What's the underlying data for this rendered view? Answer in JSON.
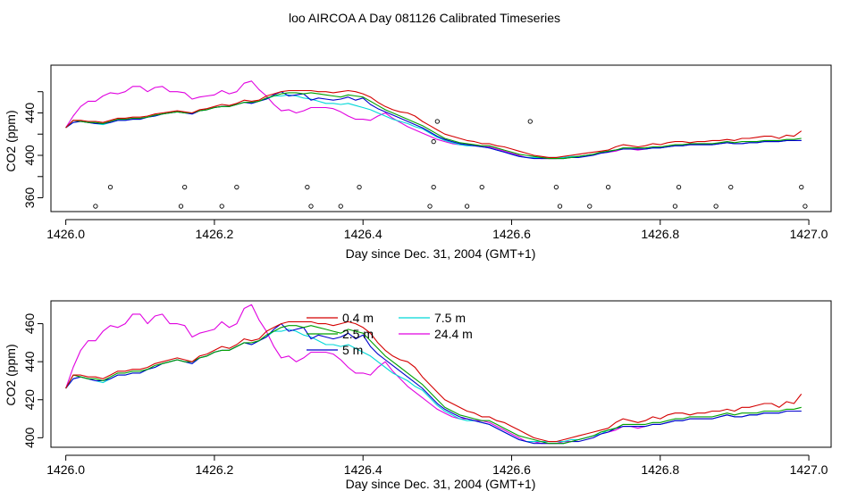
{
  "page": {
    "title": "loo AIRCOA A  Day 081126  Calibrated Timeseries"
  },
  "chart_data": [
    {
      "type": "line",
      "xlabel": "Day since Dec. 31, 2004 (GMT+1)",
      "ylabel": "CO2 (ppm)",
      "xlim": [
        1425.98,
        1427.03
      ],
      "ylim": [
        347,
        485
      ],
      "x_ticks": [
        "1426.0",
        "1426.2",
        "1426.4",
        "1426.6",
        "1426.8",
        "1427.0"
      ],
      "y_ticks": [
        "360",
        "400",
        "440"
      ],
      "y_minor_ticks": [
        360,
        380,
        400,
        420,
        440,
        460
      ],
      "grid": false,
      "series_colors": [
        "#d40000",
        "#00a000",
        "#0000cc",
        "#00d8d8",
        "#e000e0"
      ],
      "scatter_points": [
        {
          "x": 1426.04,
          "y": 352
        },
        {
          "x": 1426.06,
          "y": 370
        },
        {
          "x": 1426.155,
          "y": 352
        },
        {
          "x": 1426.16,
          "y": 370
        },
        {
          "x": 1426.21,
          "y": 352
        },
        {
          "x": 1426.23,
          "y": 370
        },
        {
          "x": 1426.325,
          "y": 370
        },
        {
          "x": 1426.33,
          "y": 352
        },
        {
          "x": 1426.37,
          "y": 352
        },
        {
          "x": 1426.395,
          "y": 370
        },
        {
          "x": 1426.49,
          "y": 352
        },
        {
          "x": 1426.495,
          "y": 370
        },
        {
          "x": 1426.495,
          "y": 413
        },
        {
          "x": 1426.5,
          "y": 432
        },
        {
          "x": 1426.54,
          "y": 352
        },
        {
          "x": 1426.56,
          "y": 370
        },
        {
          "x": 1426.625,
          "y": 432
        },
        {
          "x": 1426.66,
          "y": 370
        },
        {
          "x": 1426.665,
          "y": 352
        },
        {
          "x": 1426.705,
          "y": 352
        },
        {
          "x": 1426.73,
          "y": 370
        },
        {
          "x": 1426.82,
          "y": 352
        },
        {
          "x": 1426.825,
          "y": 370
        },
        {
          "x": 1426.875,
          "y": 352
        },
        {
          "x": 1426.895,
          "y": 370
        },
        {
          "x": 1426.99,
          "y": 370
        },
        {
          "x": 1426.995,
          "y": 352
        }
      ]
    },
    {
      "type": "line",
      "xlabel": "Day since Dec. 31, 2004 (GMT+1)",
      "ylabel": "CO2 (ppm)",
      "xlim": [
        1425.98,
        1427.03
      ],
      "ylim": [
        395,
        472
      ],
      "x_ticks": [
        "1426.0",
        "1426.2",
        "1426.4",
        "1426.6",
        "1426.8",
        "1427.0"
      ],
      "y_ticks": [
        "400",
        "420",
        "440",
        "460"
      ],
      "grid": false,
      "legend_position": "top-center",
      "series": [
        {
          "name": "0.4 m",
          "color": "#d40000"
        },
        {
          "name": "2.5 m",
          "color": "#00a000"
        },
        {
          "name": "5 m",
          "color": "#0000cc"
        },
        {
          "name": "7.5 m",
          "color": "#00d8d8"
        },
        {
          "name": "24.4 m",
          "color": "#e000e0"
        }
      ],
      "series_data": {
        "x": [
          1426.0,
          1426.01,
          1426.02,
          1426.03,
          1426.04,
          1426.05,
          1426.06,
          1426.07,
          1426.08,
          1426.09,
          1426.1,
          1426.11,
          1426.12,
          1426.13,
          1426.14,
          1426.15,
          1426.16,
          1426.17,
          1426.18,
          1426.19,
          1426.2,
          1426.21,
          1426.22,
          1426.23,
          1426.24,
          1426.25,
          1426.26,
          1426.27,
          1426.28,
          1426.29,
          1426.3,
          1426.31,
          1426.32,
          1426.33,
          1426.34,
          1426.35,
          1426.36,
          1426.37,
          1426.38,
          1426.39,
          1426.4,
          1426.41,
          1426.42,
          1426.43,
          1426.44,
          1426.45,
          1426.46,
          1426.47,
          1426.48,
          1426.49,
          1426.5,
          1426.51,
          1426.52,
          1426.53,
          1426.54,
          1426.55,
          1426.56,
          1426.57,
          1426.58,
          1426.59,
          1426.6,
          1426.61,
          1426.62,
          1426.63,
          1426.64,
          1426.65,
          1426.66,
          1426.67,
          1426.68,
          1426.69,
          1426.7,
          1426.71,
          1426.72,
          1426.73,
          1426.74,
          1426.75,
          1426.76,
          1426.77,
          1426.78,
          1426.79,
          1426.8,
          1426.81,
          1426.82,
          1426.83,
          1426.84,
          1426.85,
          1426.86,
          1426.87,
          1426.88,
          1426.89,
          1426.9,
          1426.91,
          1426.92,
          1426.93,
          1426.94,
          1426.95,
          1426.96,
          1426.97,
          1426.98,
          1426.99
        ],
        "values": [
          [
            426,
            433,
            433,
            432,
            432,
            431,
            433,
            435,
            435,
            436,
            436,
            437,
            439,
            440,
            441,
            442,
            441,
            440,
            443,
            444,
            446,
            448,
            447,
            449,
            452,
            451,
            452,
            456,
            458,
            460,
            461,
            461,
            461,
            461,
            460,
            460,
            459,
            460,
            461,
            460,
            458,
            455,
            450,
            446,
            443,
            441,
            440,
            437,
            432,
            428,
            424,
            420,
            418,
            416,
            414,
            413,
            411,
            411,
            409,
            408,
            406,
            404,
            402,
            400,
            399,
            398,
            398,
            399,
            400,
            401,
            402,
            403,
            404,
            405,
            408,
            410,
            409,
            408,
            409,
            411,
            410,
            412,
            413,
            413,
            412,
            413,
            413,
            414,
            414,
            415,
            414,
            416,
            416,
            417,
            418,
            418,
            416,
            419,
            418,
            423
          ],
          [
            426,
            433,
            432,
            431,
            431,
            430,
            432,
            434,
            434,
            435,
            435,
            436,
            438,
            439,
            440,
            441,
            440,
            440,
            442,
            443,
            445,
            446,
            446,
            448,
            450,
            450,
            451,
            454,
            456,
            458,
            459,
            459,
            458,
            459,
            458,
            457,
            456,
            455,
            457,
            456,
            455,
            451,
            447,
            443,
            440,
            437,
            434,
            431,
            428,
            424,
            420,
            416,
            414,
            412,
            411,
            410,
            409,
            409,
            407,
            405,
            403,
            401,
            400,
            399,
            398,
            397,
            397,
            397,
            398,
            399,
            400,
            401,
            403,
            404,
            405,
            407,
            407,
            407,
            407,
            408,
            408,
            409,
            410,
            410,
            411,
            411,
            411,
            411,
            412,
            413,
            412,
            413,
            413,
            413,
            414,
            414,
            414,
            415,
            415,
            416
          ],
          [
            426,
            431,
            432,
            431,
            430,
            430,
            431,
            433,
            433,
            434,
            434,
            436,
            437,
            439,
            440,
            441,
            440,
            439,
            442,
            443,
            445,
            446,
            446,
            448,
            450,
            449,
            451,
            453,
            457,
            460,
            456,
            457,
            458,
            452,
            454,
            453,
            452,
            453,
            455,
            452,
            454,
            448,
            444,
            441,
            438,
            435,
            432,
            429,
            426,
            422,
            418,
            415,
            413,
            411,
            410,
            409,
            408,
            407,
            405,
            403,
            401,
            399,
            398,
            397,
            397,
            397,
            397,
            397,
            398,
            398,
            399,
            400,
            402,
            403,
            405,
            406,
            406,
            406,
            406,
            407,
            407,
            408,
            409,
            409,
            410,
            410,
            410,
            410,
            411,
            412,
            411,
            411,
            412,
            412,
            413,
            413,
            413,
            414,
            414,
            414
          ],
          [
            426,
            431,
            432,
            431,
            430,
            429,
            431,
            433,
            433,
            434,
            434,
            436,
            437,
            439,
            440,
            441,
            440,
            439,
            442,
            443,
            445,
            446,
            446,
            448,
            450,
            449,
            451,
            453,
            456,
            456,
            457,
            456,
            454,
            453,
            451,
            449,
            449,
            448,
            449,
            447,
            445,
            443,
            440,
            437,
            434,
            432,
            430,
            427,
            425,
            421,
            417,
            414,
            412,
            410,
            409,
            409,
            408,
            407,
            405,
            403,
            401,
            399,
            398,
            398,
            398,
            398,
            398,
            398,
            399,
            399,
            400,
            401,
            402,
            404,
            405,
            406,
            406,
            406,
            406,
            407,
            407,
            408,
            409,
            409,
            410,
            410,
            410,
            410,
            411,
            412,
            411,
            411,
            412,
            412,
            413,
            413,
            413,
            414,
            414,
            414
          ],
          [
            426,
            437,
            446,
            451,
            451,
            456,
            459,
            458,
            460,
            465,
            465,
            460,
            464,
            465,
            460,
            460,
            459,
            453,
            455,
            456,
            457,
            461,
            458,
            460,
            468,
            470,
            462,
            456,
            448,
            442,
            443,
            440,
            442,
            445,
            445,
            445,
            444,
            441,
            437,
            434,
            434,
            433,
            437,
            440,
            435,
            431,
            427,
            424,
            421,
            418,
            415,
            413,
            411,
            410,
            410,
            409,
            409,
            408,
            406,
            404,
            402,
            400,
            398,
            398,
            397,
            397,
            397,
            398,
            398,
            399,
            400,
            401,
            402,
            403,
            404,
            406,
            406,
            405,
            406,
            407,
            407,
            408,
            409,
            409,
            410,
            410,
            410,
            410,
            411,
            412,
            411,
            411,
            412,
            412,
            413,
            413,
            413,
            414,
            414,
            414
          ]
        ]
      }
    }
  ]
}
